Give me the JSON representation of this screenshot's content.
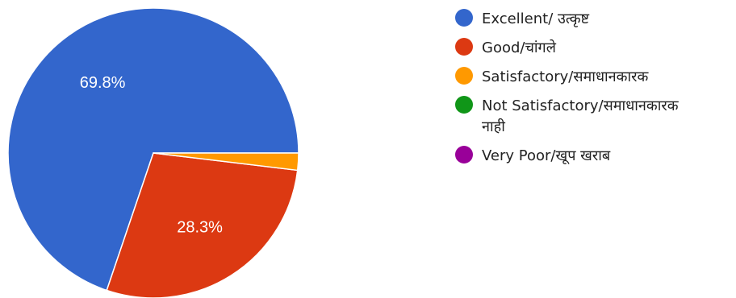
{
  "chart_data": {
    "type": "pie",
    "categories": [
      "Excellent/ उत्कृष्ट",
      "Good/चांगले",
      "Satisfactory/समाधानकारक",
      "Not Satisfactory/समाधानकारक नाही",
      "Very Poor/खूप खराब"
    ],
    "values": [
      69.8,
      28.3,
      1.9,
      0,
      0
    ],
    "colors": [
      "#3366cc",
      "#dc3912",
      "#ff9900",
      "#109618",
      "#990099"
    ],
    "data_labels": [
      "69.8%",
      "28.3%",
      "",
      "",
      ""
    ],
    "legend_lines": [
      [
        "Excellent/ उत्कृष्ट"
      ],
      [
        "Good/चांगले"
      ],
      [
        "Satisfactory/समाधानकारक"
      ],
      [
        "Not Satisfactory/समाधानकारक",
        "नाही"
      ],
      [
        "Very Poor/खूप खराब"
      ]
    ],
    "legend_position": "right"
  }
}
